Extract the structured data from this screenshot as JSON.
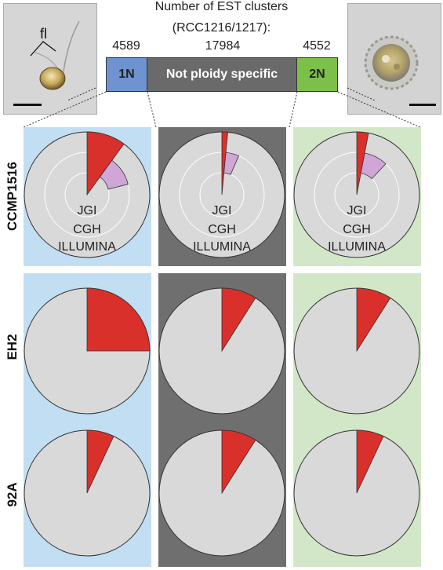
{
  "header": {
    "title": "Number of EST clusters",
    "subtitle": "(RCC1216/1217):"
  },
  "counts": {
    "n1": "4589",
    "mid": "17984",
    "n2": "4552"
  },
  "bar": {
    "n1_label": "1N",
    "mid_label": "Not ploidy specific",
    "n2_label": "2N"
  },
  "photo_left": {
    "annotation": "fl"
  },
  "rows": [
    "CCMP1516",
    "EH2",
    "92A"
  ],
  "ring_labels": [
    "JGI",
    "CGH",
    "ILLUMINA"
  ],
  "colors": {
    "n1_panel": "#c1def3",
    "mid_panel": "#6f6f6f",
    "n2_panel": "#d2e7c8",
    "n1_bar": "#6e93d0",
    "mid_bar": "#6a6a6a",
    "n2_bar": "#7cc04a",
    "pie_bg": "#d9d9d9",
    "red": "#d9302b",
    "pink": "#cfa6d6"
  },
  "chart_data": [
    {
      "type": "pie",
      "row": "CCMP1516",
      "columns": [
        {
          "column": "1N",
          "red_fraction": 0.1,
          "pink_fraction": 0.11
        },
        {
          "column": "Not ploidy specific",
          "red_fraction": 0.015,
          "pink_fraction": 0.05
        },
        {
          "column": "2N",
          "red_fraction": 0.03,
          "pink_fraction": 0.09
        }
      ]
    },
    {
      "type": "pie",
      "row": "EH2",
      "columns": [
        {
          "column": "1N",
          "red_fraction": 0.25
        },
        {
          "column": "Not ploidy specific",
          "red_fraction": 0.09
        },
        {
          "column": "2N",
          "red_fraction": 0.09
        }
      ]
    },
    {
      "type": "pie",
      "row": "92A",
      "columns": [
        {
          "column": "1N",
          "red_fraction": 0.07
        },
        {
          "column": "Not ploidy specific",
          "red_fraction": 0.09
        },
        {
          "column": "2N",
          "red_fraction": 0.07
        }
      ]
    }
  ]
}
